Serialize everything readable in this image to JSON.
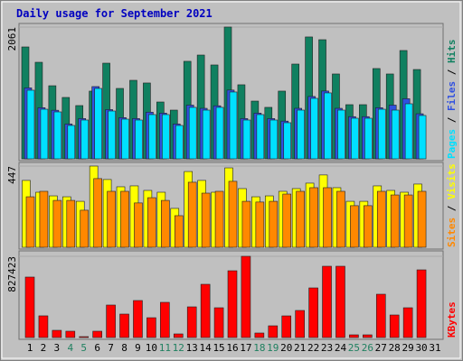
{
  "title": "Daily usage for September 2021",
  "chart_data": [
    {
      "type": "bar",
      "legend_separator": " / ",
      "ylim": [
        0,
        2117
      ],
      "yticks": [
        2061
      ],
      "series": [
        {
          "name": "Pages",
          "color": "#00e0ff",
          "values": [
            1073,
            776,
            734,
            522,
            607,
            1101,
            748,
            621,
            607,
            692,
            692,
            522,
            805,
            762,
            805,
            1045,
            607,
            692,
            607,
            565,
            762,
            946,
            1031,
            762,
            635,
            635,
            776,
            762,
            861,
            678,
            null
          ]
        },
        {
          "name": "Files",
          "color": "#3050e0",
          "values": [
            1110,
            800,
            760,
            545,
            630,
            1130,
            770,
            645,
            630,
            730,
            715,
            545,
            840,
            790,
            830,
            1075,
            630,
            715,
            630,
            590,
            790,
            975,
            1060,
            790,
            660,
            660,
            800,
            840,
            940,
            705,
            null
          ]
        },
        {
          "name": "Hits",
          "color": "#108060",
          "values": [
            1750,
            1510,
            1143,
            960,
            833,
            1059,
            1496,
            1101,
            1228,
            1186,
            889,
            762,
            1525,
            1623,
            1468,
            2061,
            1158,
            903,
            805,
            1059,
            1482,
            1906,
            1863,
            1327,
            847,
            847,
            1412,
            1327,
            1694,
            1397,
            null
          ]
        }
      ]
    },
    {
      "type": "bar",
      "legend_separator": " / ",
      "ylim": [
        0,
        457
      ],
      "yticks": [
        447
      ],
      "series": [
        {
          "name": "Sites",
          "color": "#ff8800",
          "values": [
            278,
            308,
            258,
            258,
            204,
            378,
            308,
            308,
            244,
            273,
            258,
            174,
            358,
            298,
            308,
            363,
            253,
            249,
            253,
            293,
            308,
            328,
            328,
            308,
            229,
            229,
            308,
            288,
            288,
            308,
            null
          ]
        },
        {
          "name": "Visits",
          "color": "#ffff00",
          "values": [
            368,
            303,
            283,
            278,
            253,
            447,
            373,
            333,
            338,
            313,
            303,
            214,
            417,
            368,
            303,
            437,
            323,
            278,
            283,
            308,
            323,
            353,
            398,
            328,
            253,
            253,
            338,
            313,
            303,
            348,
            null
          ]
        }
      ]
    },
    {
      "type": "bar",
      "ylim": [
        0,
        864200
      ],
      "yticks": [
        827423
      ],
      "categories": [
        "1",
        "2",
        "3",
        "4",
        "5",
        "6",
        "7",
        "8",
        "9",
        "10",
        "11",
        "12",
        "13",
        "14",
        "15",
        "16",
        "17",
        "18",
        "19",
        "20",
        "21",
        "22",
        "23",
        "24",
        "25",
        "26",
        "27",
        "28",
        "29",
        "30",
        "31"
      ],
      "category_colors": [
        "#000",
        "#000",
        "#000",
        "#208060",
        "#208060",
        "#000",
        "#000",
        "#000",
        "#000",
        "#000",
        "#208060",
        "#208060",
        "#000",
        "#000",
        "#000",
        "#000",
        "#000",
        "#208060",
        "#208060",
        "#000",
        "#000",
        "#000",
        "#000",
        "#000",
        "#208060",
        "#208060",
        "#000",
        "#000",
        "#000",
        "#000",
        "#000"
      ],
      "series": [
        {
          "name": "KBytes",
          "color": "#ff0000",
          "values": [
            616000,
            221000,
            73500,
            64400,
            9200,
            64400,
            331000,
            239000,
            377000,
            202000,
            358600,
            36800,
            312600,
            542400,
            303400,
            680300,
            827423,
            46000,
            119500,
            220600,
            275800,
            505600,
            726300,
            726300,
            27600,
            27600,
            441300,
            229800,
            303400,
            689500,
            null
          ]
        }
      ]
    }
  ]
}
